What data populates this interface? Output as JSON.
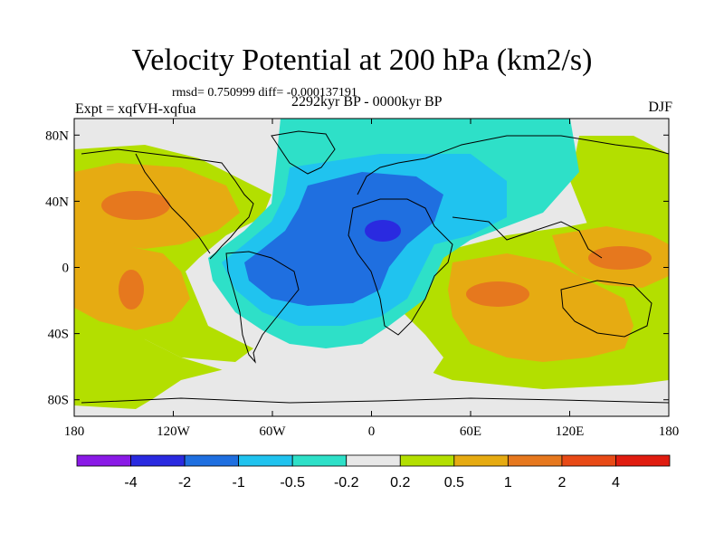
{
  "header": {
    "title": "Velocity Potential at 200 hPa (km2/s)",
    "stats": "rmsd= 0.750999 diff= -0.000137191",
    "experiment": "Expt = xqfVH-xqfua",
    "period": "2292kyr BP - 0000kyr BP",
    "season": "DJF"
  },
  "map": {
    "x_ticks": [
      "180",
      "120W",
      "60W",
      "0",
      "60E",
      "120E",
      "180"
    ],
    "y_ticks": [
      "80N",
      "40N",
      "0",
      "40S",
      "80S"
    ],
    "ocean_color": "#e8e8e8",
    "coast_color": "#000000"
  },
  "colorbar": {
    "labels": [
      "-4",
      "-2",
      "-1",
      "-0.5",
      "-0.2",
      "0.2",
      "0.5",
      "1",
      "2",
      "4"
    ],
    "colors": [
      "#8a1ae6",
      "#2a2ae0",
      "#1f6fe0",
      "#20c3ef",
      "#2ee0c8",
      "#e8e8e8",
      "#b3df00",
      "#e6ab12",
      "#e6781e",
      "#e84a16",
      "#e01c10"
    ]
  },
  "chart_data": {
    "type": "contour-map",
    "title": "Velocity Potential at 200 hPa (km2/s)",
    "variable": "Velocity potential difference (km2/s)",
    "x_range": [
      -180,
      180
    ],
    "y_range": [
      -90,
      90
    ],
    "levels": [
      -4,
      -2,
      -1,
      -0.5,
      -0.2,
      0.2,
      0.5,
      1,
      2,
      4
    ],
    "features": [
      {
        "name": "negative centre over North Africa",
        "lon": 5,
        "lat": 24,
        "level_band": "-4 to -2"
      },
      {
        "name": "negative region over South America / Atlantic",
        "lon": -40,
        "lat": 0,
        "level_band": "-2 to -1"
      },
      {
        "name": "positive centre North Pacific",
        "lon": -140,
        "lat": 35,
        "level_band": "1 to 2"
      },
      {
        "name": "positive centre South Pacific",
        "lon": -145,
        "lat": -15,
        "level_band": "1 to 2"
      },
      {
        "name": "positive centre Indian Ocean",
        "lon": 75,
        "lat": -15,
        "level_band": "1 to 2"
      },
      {
        "name": "positive centre West Pacific",
        "lon": 145,
        "lat": 10,
        "level_band": "1 to 2"
      }
    ]
  }
}
